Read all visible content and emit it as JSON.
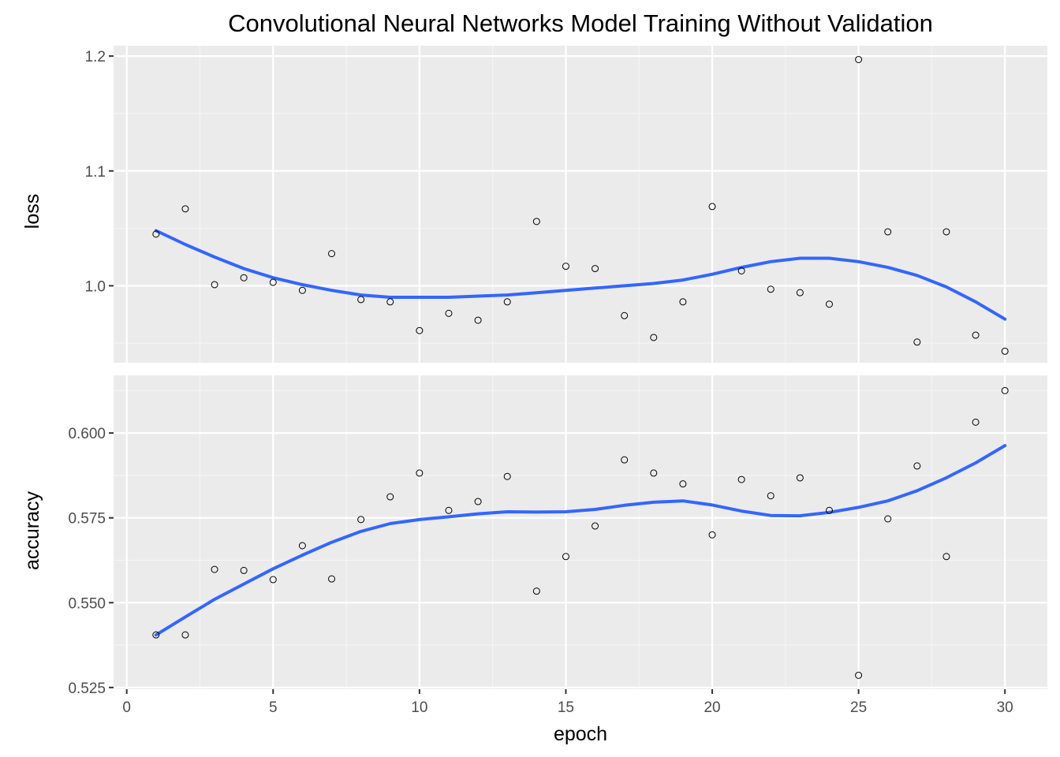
{
  "chart_data": {
    "type": "scatter",
    "title": "Convolutional Neural Networks Model Training Without Validation",
    "xlabel": "epoch",
    "x": [
      1,
      2,
      3,
      4,
      5,
      6,
      7,
      8,
      9,
      10,
      11,
      12,
      13,
      14,
      15,
      16,
      17,
      18,
      19,
      20,
      21,
      22,
      23,
      24,
      25,
      26,
      27,
      28,
      29,
      30
    ],
    "xlim": [
      -0.45,
      31.45
    ],
    "xticks": [
      0,
      5,
      10,
      15,
      20,
      25,
      30
    ],
    "grid": true,
    "panels": [
      {
        "name": "loss",
        "ylabel": "loss",
        "ylim": [
          0.933,
          1.209
        ],
        "yticks": [
          1.0,
          1.1,
          1.2
        ],
        "ytick_labels": [
          "1.0",
          "1.1",
          "1.2"
        ],
        "points": [
          1.045,
          1.067,
          1.001,
          1.007,
          1.003,
          0.996,
          1.028,
          0.988,
          0.986,
          0.961,
          0.976,
          0.97,
          0.986,
          1.056,
          1.017,
          1.015,
          0.974,
          0.955,
          0.986,
          1.069,
          1.013,
          0.997,
          0.994,
          0.984,
          1.197,
          1.047,
          0.951,
          1.047,
          0.957,
          0.943
        ],
        "smooth": [
          1.048,
          1.036,
          1.025,
          1.015,
          1.007,
          1.001,
          0.996,
          0.992,
          0.99,
          0.99,
          0.99,
          0.991,
          0.992,
          0.994,
          0.996,
          0.998,
          1.0,
          1.002,
          1.005,
          1.01,
          1.016,
          1.021,
          1.024,
          1.024,
          1.021,
          1.016,
          1.009,
          0.999,
          0.986,
          0.971
        ]
      },
      {
        "name": "accuracy",
        "ylabel": "accuracy",
        "ylim": [
          0.5245,
          0.617
        ],
        "yticks": [
          0.525,
          0.55,
          0.575,
          0.6
        ],
        "ytick_labels": [
          "0.525",
          "0.550",
          "0.575",
          "0.600"
        ],
        "points": [
          0.5405,
          0.5405,
          0.5598,
          0.5595,
          0.5568,
          0.5668,
          0.557,
          0.5745,
          0.5812,
          0.5882,
          0.5772,
          0.5798,
          0.5872,
          0.5534,
          0.5636,
          0.5726,
          0.5921,
          0.5882,
          0.585,
          0.57,
          0.5863,
          0.5815,
          0.5868,
          0.5772,
          0.5286,
          0.5747,
          0.5903,
          0.5636,
          0.6032,
          0.6125
        ],
        "smooth": [
          0.5405,
          0.5458,
          0.551,
          0.5555,
          0.56,
          0.564,
          0.5678,
          0.571,
          0.5733,
          0.5745,
          0.5753,
          0.5762,
          0.5768,
          0.5767,
          0.5768,
          0.5775,
          0.5787,
          0.5796,
          0.58,
          0.5788,
          0.577,
          0.5757,
          0.5756,
          0.5766,
          0.5781,
          0.58,
          0.583,
          0.5868,
          0.5912,
          0.5963
        ]
      }
    ],
    "colors": {
      "background": "#ebebeb",
      "grid_major": "#ffffff",
      "grid_minor": "#f5f5f5",
      "smooth": "#3366ff",
      "points": "#000000",
      "tick_text": "#4d4d4d"
    }
  }
}
